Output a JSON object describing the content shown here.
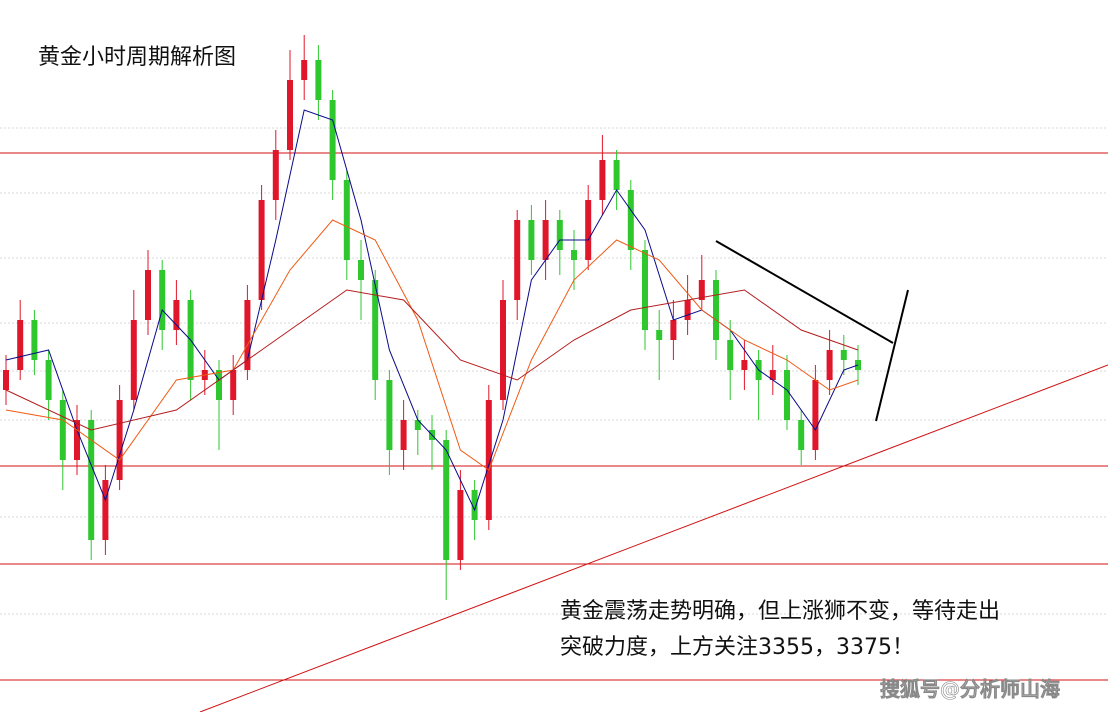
{
  "chart_data": {
    "type": "candlestick",
    "title": "黄金小时周期解析图",
    "annotation": [
      "黄金震荡走势明确，但上涨狮不变，等待走出",
      "突破力度，上方关注3355，3375！"
    ],
    "watermark": "搜狐号@分析师山海",
    "ylim": [
      3257.6,
      3400
    ],
    "up_color": "#e0162b",
    "down_color": "#2ec82e",
    "open": [
      3322,
      3326,
      3336,
      3328,
      3320,
      3308,
      3316,
      3292,
      3304,
      3320,
      3336,
      3346,
      3334,
      3340,
      3324,
      3326,
      3320,
      3326,
      3340,
      3360,
      3370,
      3384,
      3388,
      3380,
      3364,
      3348,
      3344,
      3324,
      3310,
      3316,
      3314,
      3312,
      3288,
      3302,
      3296,
      3320,
      3340,
      3356,
      3348,
      3356,
      3350,
      3348,
      3360,
      3368,
      3362,
      3350,
      3334,
      3332,
      3336,
      3340,
      3344,
      3332,
      3326,
      3328,
      3324,
      3326,
      3316,
      3310,
      3324,
      3330,
      3328
    ],
    "high": [
      3329,
      3340,
      3338,
      3330,
      3322,
      3319,
      3318,
      3307,
      3323,
      3342,
      3350,
      3348,
      3344,
      3342,
      3330,
      3328,
      3329,
      3343,
      3363,
      3374,
      3390,
      3393,
      3391,
      3382,
      3366,
      3352,
      3346,
      3326,
      3320,
      3318,
      3317,
      3314,
      3306,
      3304,
      3323,
      3344,
      3358,
      3359,
      3360,
      3358,
      3354,
      3363,
      3373,
      3370,
      3364,
      3352,
      3338,
      3340,
      3345,
      3349,
      3346,
      3336,
      3332,
      3330,
      3331,
      3329,
      3318,
      3327,
      3334,
      3333,
      3331
    ],
    "low": [
      3319,
      3324,
      3325,
      3316,
      3302,
      3305,
      3288,
      3289,
      3302,
      3318,
      3333,
      3330,
      3331,
      3320,
      3321,
      3310,
      3317,
      3324,
      3338,
      3356,
      3368,
      3380,
      3376,
      3360,
      3344,
      3336,
      3320,
      3305,
      3306,
      3309,
      3306,
      3280,
      3286,
      3292,
      3294,
      3318,
      3336,
      3345,
      3344,
      3345,
      3342,
      3346,
      3357,
      3358,
      3346,
      3330,
      3324,
      3328,
      3333,
      3338,
      3328,
      3320,
      3322,
      3316,
      3321,
      3314,
      3307,
      3308,
      3321,
      3325,
      3323
    ],
    "close": [
      3326,
      3336,
      3328,
      3320,
      3308,
      3316,
      3292,
      3304,
      3320,
      3336,
      3346,
      3334,
      3340,
      3324,
      3326,
      3320,
      3326,
      3340,
      3360,
      3370,
      3384,
      3388,
      3380,
      3364,
      3348,
      3344,
      3324,
      3310,
      3316,
      3314,
      3312,
      3288,
      3302,
      3296,
      3320,
      3340,
      3356,
      3348,
      3356,
      3350,
      3348,
      3360,
      3368,
      3362,
      3350,
      3334,
      3332,
      3336,
      3340,
      3344,
      3332,
      3326,
      3328,
      3324,
      3326,
      3316,
      3310,
      3324,
      3330,
      3328,
      3326
    ],
    "series": [
      {
        "color": "#0a0a8a",
        "x": [
          0,
          3,
          5,
          7,
          9,
          11,
          13,
          15,
          17,
          19,
          21,
          23,
          25,
          27,
          29,
          31,
          33,
          35,
          37,
          39,
          41,
          43,
          45,
          47,
          49,
          51,
          53,
          55,
          57,
          59,
          60
        ],
        "values": [
          3328,
          3330,
          3314,
          3300,
          3318,
          3338,
          3332,
          3324,
          3328,
          3352,
          3378,
          3376,
          3356,
          3330,
          3316,
          3310,
          3298,
          3316,
          3344,
          3352,
          3352,
          3362,
          3354,
          3336,
          3338,
          3334,
          3326,
          3322,
          3314,
          3326,
          3327
        ]
      },
      {
        "color": "#f05a14",
        "x": [
          0,
          4,
          8,
          12,
          16,
          20,
          23,
          26,
          29,
          32,
          34,
          37,
          40,
          43,
          46,
          49,
          52,
          55,
          58,
          60
        ],
        "values": [
          3318,
          3316,
          3308,
          3324,
          3326,
          3346,
          3356,
          3352,
          3336,
          3310,
          3306,
          3328,
          3344,
          3352,
          3348,
          3338,
          3332,
          3328,
          3322,
          3324
        ]
      },
      {
        "color": "#b41e1e",
        "x": [
          0,
          6,
          12,
          18,
          24,
          28,
          32,
          36,
          40,
          44,
          48,
          52,
          56,
          60
        ],
        "values": [
          3322,
          3314,
          3318,
          3330,
          3342,
          3340,
          3328,
          3324,
          3332,
          3338,
          3340,
          3342,
          3334,
          3330
        ]
      }
    ]
  }
}
